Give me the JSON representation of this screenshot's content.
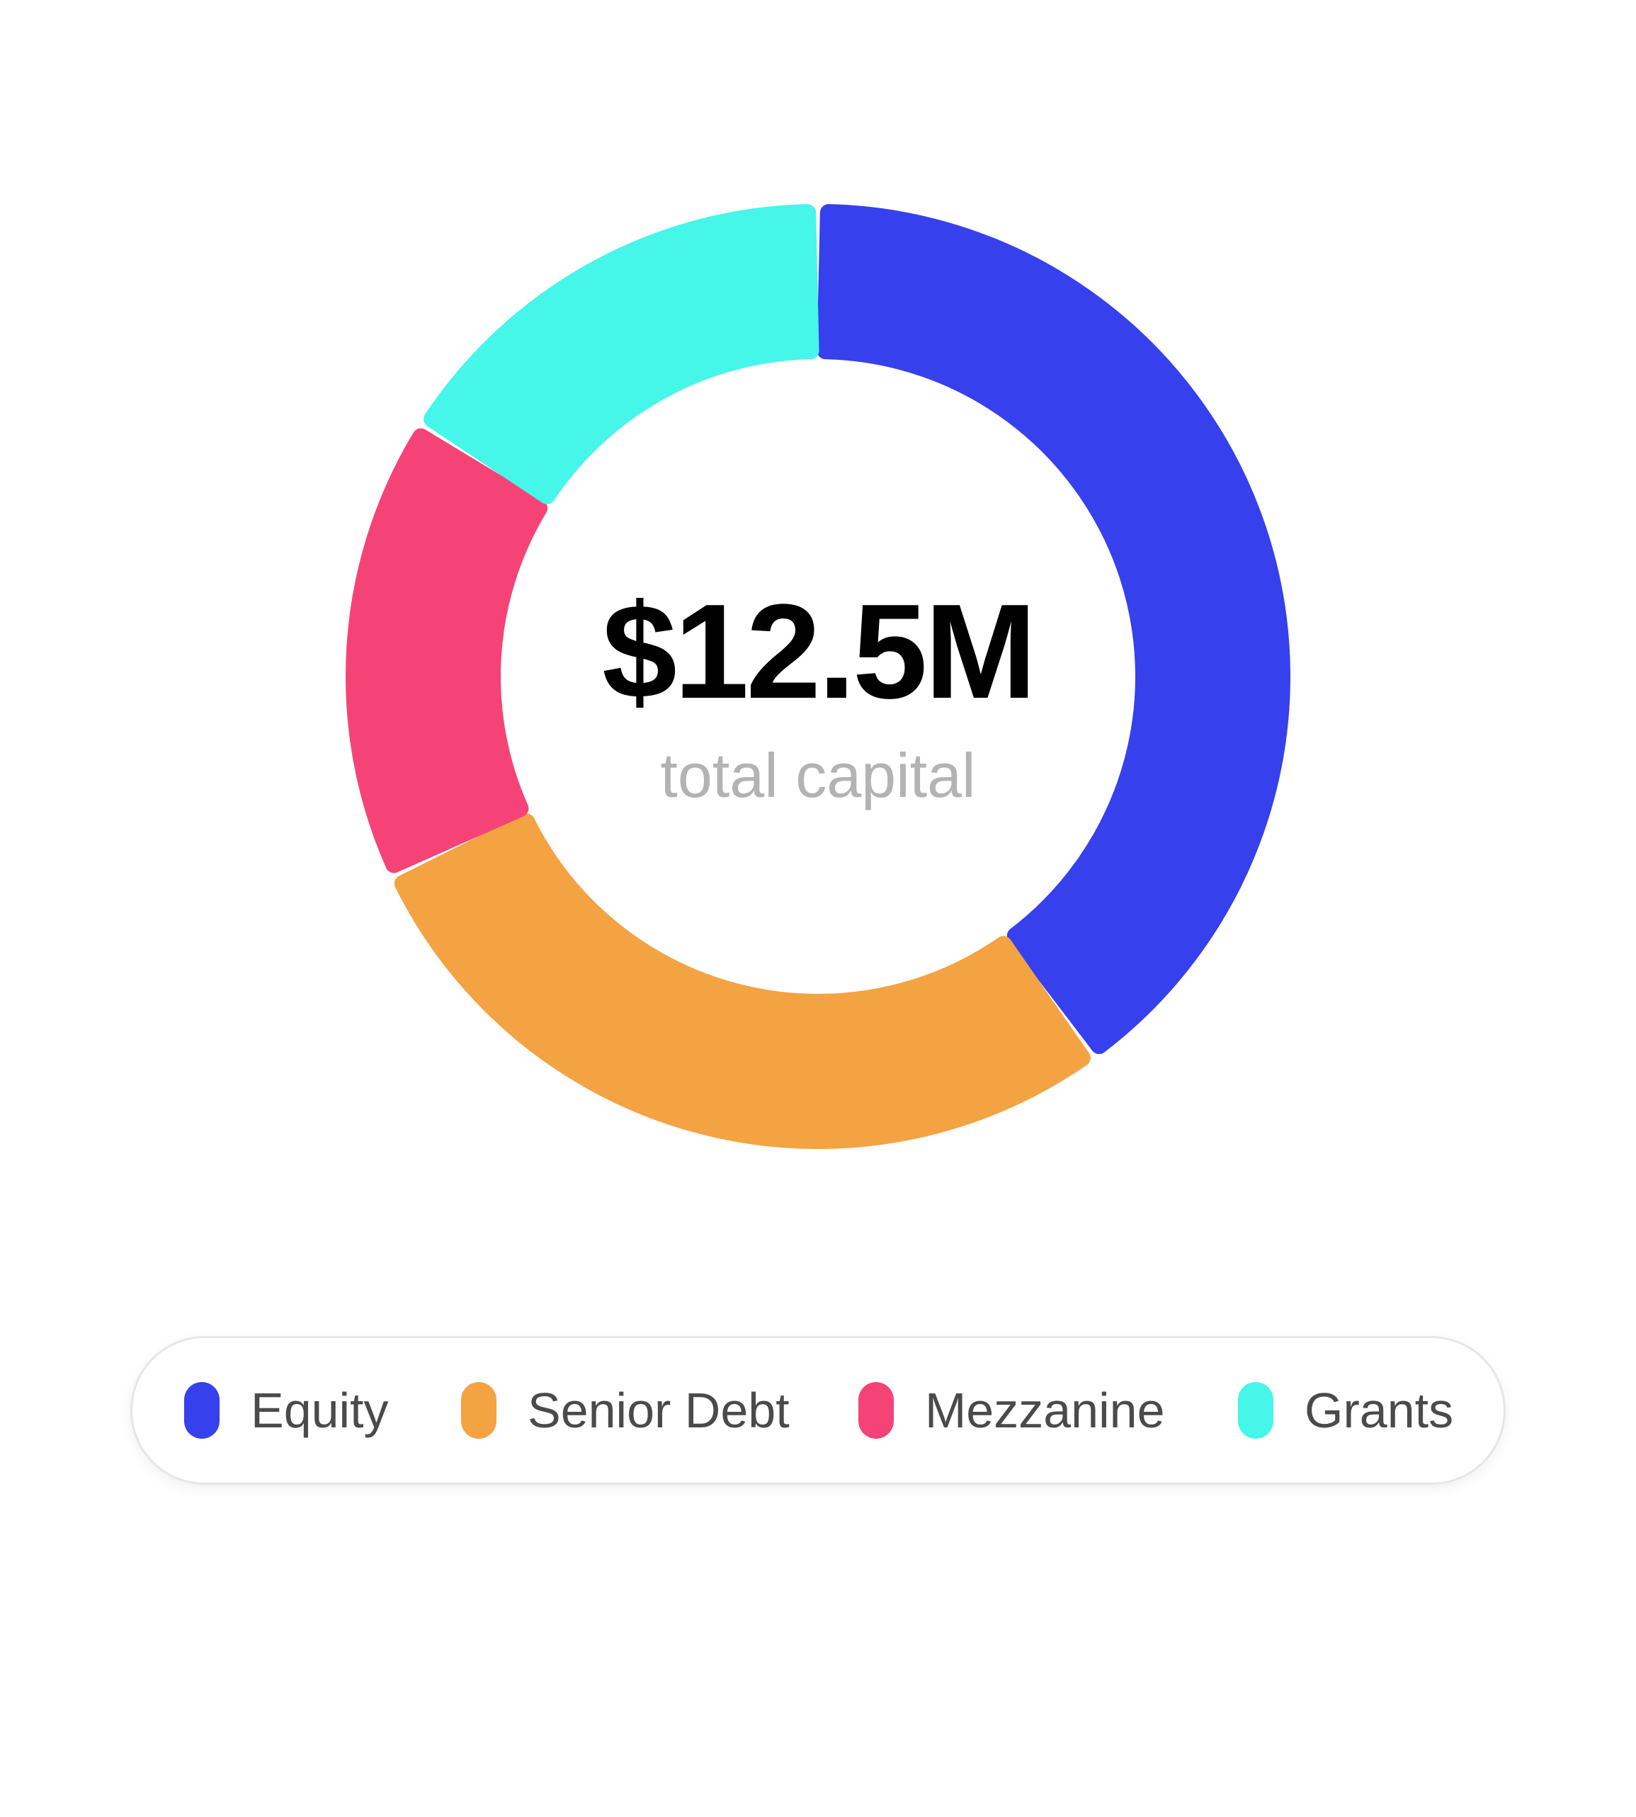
{
  "chart_data": {
    "type": "pie",
    "variant": "donut",
    "center_value": "$12.5M",
    "center_label": "total capital",
    "categories": [
      "Equity",
      "Senior Debt",
      "Mezzanine",
      "Grants"
    ],
    "values": [
      40,
      28,
      16,
      16
    ],
    "value_unit": "percent (estimated)",
    "colors": [
      "#3640ED",
      "#F4A343",
      "#F54378",
      "#45F6E9"
    ],
    "legend_position": "bottom"
  }
}
